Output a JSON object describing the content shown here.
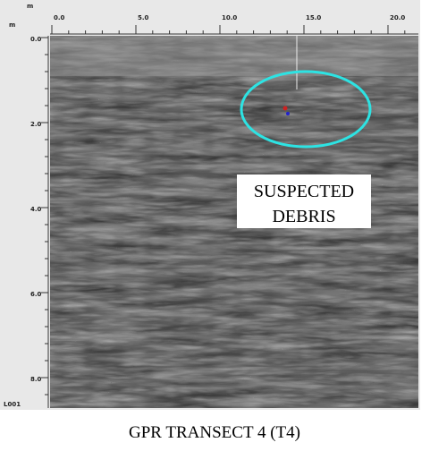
{
  "figure": {
    "top_axis": {
      "unit": "m",
      "ticks": [
        "0.0",
        "5.0",
        "10.0",
        "15.0",
        "20.0"
      ]
    },
    "left_axis": {
      "unit": "m",
      "ticks": [
        "0.0",
        "2.0",
        "4.0",
        "6.0",
        "8.0"
      ]
    },
    "line_id": "L001",
    "annotation": {
      "lines": [
        "SUSPECTED",
        "DEBRIS"
      ]
    },
    "caption": "GPR TRANSECT 4 (T4)"
  }
}
